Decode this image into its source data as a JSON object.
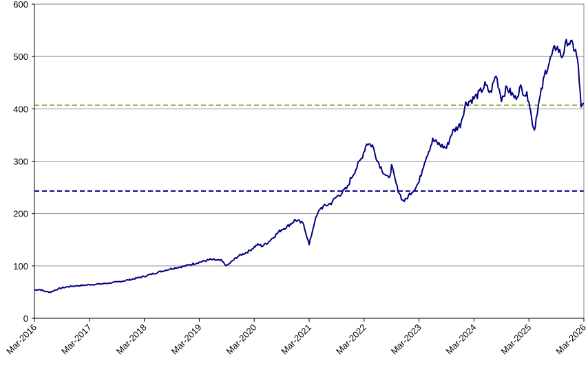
{
  "chart_data": {
    "type": "line",
    "title": "",
    "xlabel": "",
    "ylabel": "",
    "ylim": [
      0,
      600
    ],
    "y_ticks": [
      0,
      100,
      200,
      300,
      400,
      500,
      600
    ],
    "x_tick_labels": [
      "Mar-2016",
      "Mar-2017",
      "Mar-2018",
      "Mar-2019",
      "Mar-2020",
      "Mar-2021",
      "Mar-2022",
      "Mar-2023",
      "Mar-2024",
      "Mar-2025",
      "Mar-2026"
    ],
    "xlim": [
      2016.0,
      2026.0
    ],
    "grid": "horizontal",
    "legend": "none",
    "series": [
      {
        "color": "#000080",
        "x": [
          2016.0,
          2016.1,
          2016.2,
          2016.3,
          2016.4,
          2016.5,
          2016.6,
          2016.75,
          2016.9,
          2017.0,
          2017.25,
          2017.5,
          2017.75,
          2018.0,
          2018.25,
          2018.5,
          2018.75,
          2019.0,
          2019.2,
          2019.4,
          2019.5,
          2019.7,
          2019.9,
          2020.0,
          2020.05,
          2020.1,
          2020.15,
          2020.25,
          2020.4,
          2020.5,
          2020.6,
          2020.75,
          2020.9,
          2021.0,
          2021.1,
          2021.2,
          2021.3,
          2021.4,
          2021.5,
          2021.6,
          2021.7,
          2021.75,
          2021.85,
          2021.95,
          2022.05,
          2022.15,
          2022.25,
          2022.35,
          2022.45,
          2022.5,
          2022.6,
          2022.7,
          2022.75,
          2022.85,
          2022.9,
          2023.0,
          2023.1,
          2023.25,
          2023.4,
          2023.5,
          2023.6,
          2023.75,
          2023.85,
          2024.0,
          2024.1,
          2024.2,
          2024.3,
          2024.4,
          2024.5,
          2024.6,
          2024.75,
          2024.85,
          2025.0,
          2025.05,
          2025.1,
          2025.15,
          2025.3,
          2025.45,
          2025.5,
          2025.6,
          2025.7,
          2025.8,
          2025.85,
          2025.9,
          2025.95,
          2026.0
        ],
        "values": [
          54,
          55,
          51,
          50,
          55,
          58,
          60,
          62,
          63,
          64,
          66,
          69,
          74,
          80,
          88,
          95,
          100,
          107,
          112,
          110,
          100,
          118,
          128,
          136,
          140,
          140,
          138,
          145,
          160,
          170,
          175,
          188,
          180,
          140,
          185,
          210,
          215,
          220,
          232,
          240,
          250,
          265,
          285,
          305,
          335,
          330,
          300,
          280,
          265,
          290,
          250,
          225,
          225,
          240,
          245,
          260,
          300,
          340,
          330,
          325,
          355,
          370,
          410,
          420,
          430,
          445,
          430,
          465,
          420,
          440,
          420,
          440,
          420,
          380,
          360,
          395,
          470,
          510,
          520,
          500,
          530,
          520,
          510,
          480,
          400,
          410
        ]
      }
    ],
    "reference_lines": [
      {
        "y": 407,
        "color": "#99BB44",
        "style": "dashed"
      },
      {
        "y": 243,
        "color": "#000080",
        "style": "dashed"
      }
    ]
  }
}
